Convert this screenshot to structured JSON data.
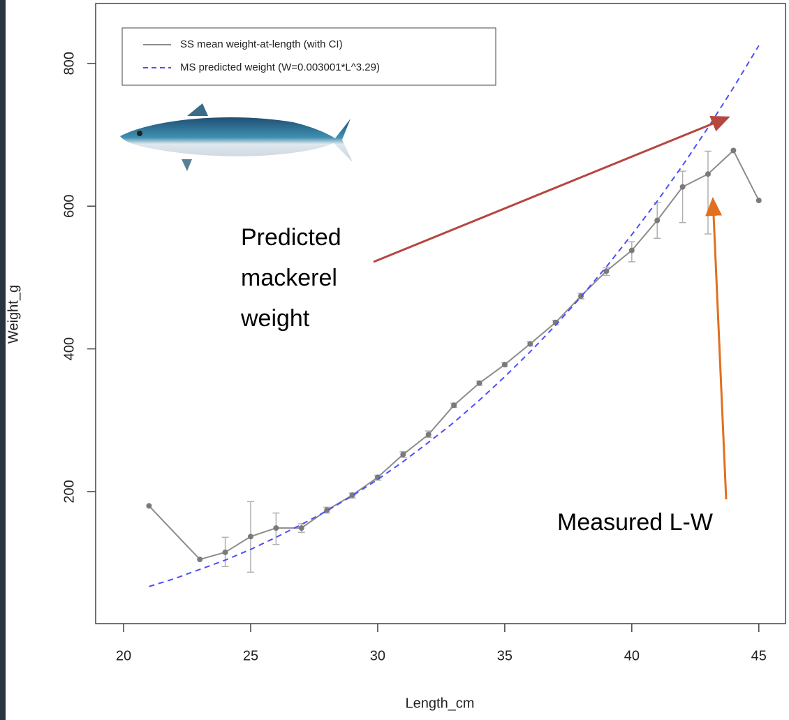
{
  "chart_data": {
    "type": "line",
    "x_label": "Length_cm",
    "y_label": "Weight_g",
    "xlim": [
      18.9,
      46.05
    ],
    "ylim": [
      15,
      884
    ],
    "xticks": [
      20,
      25,
      30,
      35,
      40,
      45
    ],
    "yticks": [
      200,
      400,
      600,
      800
    ],
    "legend": "top-left",
    "series": [
      {
        "name": "SS mean weight-at-length (with CI)",
        "color": "#8c8c8c",
        "style": "solid",
        "x": [
          21,
          23,
          24,
          25,
          26,
          27,
          28,
          29,
          30,
          31,
          32,
          33,
          34,
          35,
          36,
          37,
          38,
          39,
          40,
          41,
          42,
          43,
          44,
          45
        ],
        "values": [
          180,
          105,
          115,
          137,
          149,
          149,
          174,
          195,
          220,
          252,
          280,
          321,
          352,
          378,
          407,
          437,
          474,
          509,
          538,
          580,
          627,
          645,
          678,
          608
        ],
        "lower": [
          null,
          null,
          95,
          87,
          126,
          143,
          170,
          191,
          216,
          248,
          276,
          318,
          349,
          375,
          404,
          434,
          470,
          503,
          522,
          555,
          577,
          561,
          null,
          null
        ],
        "upper": [
          null,
          null,
          136,
          186,
          170,
          155,
          178,
          198,
          223,
          256,
          285,
          324,
          355,
          381,
          410,
          440,
          478,
          514,
          550,
          605,
          649,
          677,
          null,
          null
        ]
      },
      {
        "name": "MS predicted weight (W=0.003001*L^3.29)",
        "color": "#4d4dff",
        "style": "dashed",
        "x": [
          21,
          22,
          23,
          24,
          25,
          26,
          27,
          28,
          29,
          30,
          31,
          32,
          33,
          34,
          35,
          36,
          37,
          38,
          39,
          40,
          41,
          42,
          43,
          44,
          45
        ],
        "values": [
          67,
          78,
          91,
          104,
          119,
          136,
          154,
          173,
          194,
          217,
          242,
          269,
          297,
          328,
          361,
          396,
          433,
          473,
          515,
          560,
          607,
          657,
          710,
          766,
          825
        ]
      }
    ],
    "annotations": [
      {
        "text": [
          "Predicted",
          "mackerel",
          "weight"
        ],
        "color": "#b5473f"
      },
      {
        "text": [
          "Measured L-W"
        ],
        "color": "#e07020"
      }
    ]
  }
}
